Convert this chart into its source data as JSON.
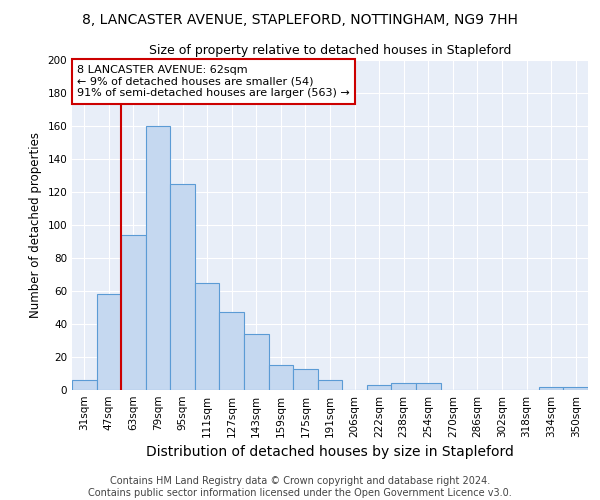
{
  "title": "8, LANCASTER AVENUE, STAPLEFORD, NOTTINGHAM, NG9 7HH",
  "subtitle": "Size of property relative to detached houses in Stapleford",
  "xlabel": "Distribution of detached houses by size in Stapleford",
  "ylabel": "Number of detached properties",
  "categories": [
    "31sqm",
    "47sqm",
    "63sqm",
    "79sqm",
    "95sqm",
    "111sqm",
    "127sqm",
    "143sqm",
    "159sqm",
    "175sqm",
    "191sqm",
    "206sqm",
    "222sqm",
    "238sqm",
    "254sqm",
    "270sqm",
    "286sqm",
    "302sqm",
    "318sqm",
    "334sqm",
    "350sqm"
  ],
  "values": [
    6,
    58,
    94,
    160,
    125,
    65,
    47,
    34,
    15,
    13,
    6,
    0,
    3,
    4,
    4,
    0,
    0,
    0,
    0,
    2,
    2
  ],
  "bar_color": "#c5d8f0",
  "bar_edge_color": "#5b9bd5",
  "ylim": [
    0,
    200
  ],
  "yticks": [
    0,
    20,
    40,
    60,
    80,
    100,
    120,
    140,
    160,
    180,
    200
  ],
  "vline_color": "#cc0000",
  "annotation_text": "8 LANCASTER AVENUE: 62sqm\n← 9% of detached houses are smaller (54)\n91% of semi-detached houses are larger (563) →",
  "annotation_box_color": "#ffffff",
  "annotation_box_edge": "#cc0000",
  "footer_line1": "Contains HM Land Registry data © Crown copyright and database right 2024.",
  "footer_line2": "Contains public sector information licensed under the Open Government Licence v3.0.",
  "background_color": "#e8eef8",
  "title_fontsize": 10,
  "subtitle_fontsize": 9,
  "xlabel_fontsize": 10,
  "ylabel_fontsize": 8.5,
  "tick_fontsize": 7.5,
  "footer_fontsize": 7,
  "annotation_fontsize": 8
}
